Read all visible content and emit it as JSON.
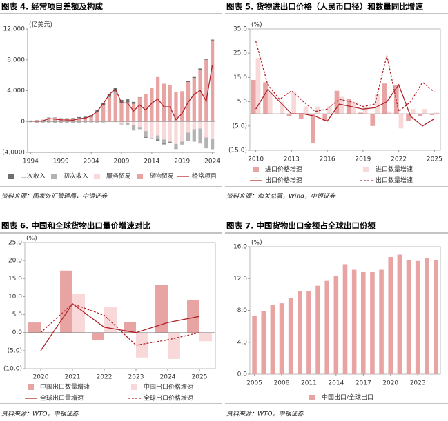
{
  "chart_data": [
    {
      "type": "combo",
      "title": "图表 4. 经常项目差额及构成",
      "source": "资料来源：国家外汇管理局，中银证券",
      "unit": "(亿美元)",
      "stacked": true,
      "categories": [
        "1994",
        null,
        null,
        null,
        null,
        "1999",
        null,
        null,
        null,
        null,
        "2004",
        null,
        null,
        null,
        null,
        "2009",
        null,
        null,
        null,
        null,
        "2014",
        null,
        null,
        null,
        null,
        "2019",
        null,
        null,
        null,
        null,
        "2024"
      ],
      "ylim": [
        -4000,
        12000
      ],
      "yticks": [
        {
          "value": -4000,
          "label": "(4,000)"
        },
        0,
        {
          "value": 4000,
          "label": "4,000"
        },
        {
          "value": 8000,
          "label": "8,000"
        },
        {
          "value": 12000,
          "label": "12,000"
        }
      ],
      "series": [
        {
          "name": "二次收入",
          "kind": "bar",
          "color": "#6e6e6e",
          "values": [
            10,
            10,
            20,
            50,
            40,
            50,
            60,
            90,
            130,
            170,
            230,
            250,
            290,
            390,
            430,
            370,
            410,
            250,
            30,
            -90,
            10,
            -130,
            -90,
            -70,
            -40,
            0,
            160,
            140,
            180,
            90,
            110
          ]
        },
        {
          "name": "初次收入",
          "kind": "bar",
          "color": "#b3b3b3",
          "values": [
            -100,
            -120,
            -120,
            -110,
            -170,
            -140,
            -150,
            -190,
            -150,
            -100,
            -50,
            -160,
            -50,
            80,
            290,
            -90,
            -260,
            -700,
            -200,
            -780,
            -130,
            -520,
            -550,
            -100,
            -610,
            -390,
            -1050,
            -1620,
            -1940,
            -1400,
            -1300
          ]
        },
        {
          "name": "服务贸易",
          "kind": "bar",
          "color": "#f8d8d8",
          "values": [
            0,
            -60,
            -20,
            -30,
            -30,
            -50,
            -60,
            -60,
            -70,
            -90,
            -100,
            -90,
            -90,
            -80,
            -120,
            -300,
            -230,
            -470,
            -800,
            -1240,
            -2140,
            -1820,
            -2330,
            -2590,
            -2920,
            -2610,
            -1450,
            -1000,
            -920,
            -2080,
            -2300
          ]
        },
        {
          "name": "货物贸易",
          "kind": "bar",
          "color": "#e8a3a3",
          "values": [
            70,
            180,
            200,
            460,
            470,
            360,
            350,
            340,
            440,
            450,
            590,
            1240,
            2090,
            3120,
            3600,
            2430,
            2460,
            2290,
            3120,
            3590,
            4350,
            5760,
            4890,
            4760,
            3800,
            3930,
            5110,
            5630,
            6690,
            8000,
            10500
          ]
        },
        {
          "name": "经常项目",
          "kind": "line",
          "color": "#b0232a",
          "values": [
            80,
            20,
            70,
            370,
            320,
            210,
            200,
            170,
            350,
            430,
            690,
            1320,
            2320,
            3530,
            4210,
            2430,
            2380,
            1360,
            2150,
            1480,
            2360,
            2930,
            1910,
            1890,
            240,
            1030,
            2490,
            3530,
            4020,
            2640,
            7300
          ]
        }
      ]
    },
    {
      "type": "combo",
      "title": "图表 5. 货物进出口价格（人民币口径）和数量同比增速",
      "source": "资料来源：海关总署，Wind，中银证券",
      "unit": "(%)",
      "categories": [
        "2010",
        null,
        null,
        "2013",
        null,
        null,
        "2016",
        null,
        null,
        "2019",
        null,
        null,
        "2022",
        null,
        null,
        "2025"
      ],
      "ylim": [
        -15,
        35
      ],
      "yticks": [
        {
          "value": -15,
          "label": "(15.0)"
        },
        {
          "value": -5,
          "label": "(5.0)"
        },
        {
          "value": 5,
          "label": "5.0"
        },
        {
          "value": 15,
          "label": "15.0"
        },
        {
          "value": 25,
          "label": "25.0"
        },
        {
          "value": 35,
          "label": "35.0"
        }
      ],
      "series": [
        {
          "name": "进口价格增速",
          "kind": "bar",
          "color": "#e8a3a3",
          "values": [
            14,
            13,
            0,
            -1,
            -2,
            -12,
            -3,
            9.5,
            6,
            0.5,
            -5,
            12.5,
            12,
            -3,
            -1,
            -0.5
          ]
        },
        {
          "name": "进口数量增速",
          "kind": "bar",
          "color": "#f8d8d8",
          "values": [
            23,
            9,
            5,
            9,
            3,
            3,
            3,
            7,
            5,
            3,
            8,
            1,
            -6,
            2,
            2,
            0.5
          ]
        },
        {
          "name": "出口价格增速",
          "kind": "line",
          "color": "#b0232a",
          "values": [
            2,
            10,
            5,
            0,
            0,
            -1,
            -3,
            4,
            3,
            2,
            2.5,
            5,
            12,
            -1,
            -5,
            -2
          ]
        },
        {
          "name": "出口数量增速",
          "kind": "line",
          "dash": true,
          "color": "#b0232a",
          "values": [
            30,
            12,
            6,
            9.5,
            5,
            1,
            2,
            6,
            5,
            3,
            4,
            24,
            1,
            5,
            13,
            9
          ]
        }
      ]
    },
    {
      "type": "combo",
      "title": "图表 6. 中国和全球货物出口量价增速对比",
      "source": "资料来源：WTO，中银证券",
      "unit": "(%)",
      "categories": [
        "2020",
        "2021",
        "2022",
        "2023",
        "2024",
        "2025"
      ],
      "ylim": [
        -10,
        25
      ],
      "yticks": [
        {
          "value": -10,
          "label": "(10.0)"
        },
        {
          "value": -5,
          "label": "(5.0)"
        },
        {
          "value": 0,
          "label": "0.0"
        },
        {
          "value": 5,
          "label": "5.0"
        },
        {
          "value": 10,
          "label": "10.0"
        },
        {
          "value": 15,
          "label": "15.0"
        },
        {
          "value": 20,
          "label": "20.0"
        },
        {
          "value": 25,
          "label": "25.0"
        }
      ],
      "series": [
        {
          "name": "中国出口数量增速",
          "kind": "bar",
          "color": "#e8a3a3",
          "values": [
            2.8,
            17.2,
            -2.1,
            3.0,
            13.2,
            9.1
          ]
        },
        {
          "name": "中国出口价格增速",
          "kind": "bar",
          "color": "#f8d8d8",
          "values": [
            0.2,
            10.8,
            7.0,
            -6.9,
            -7.3,
            -2.4
          ]
        },
        {
          "name": "全球出口量增速",
          "kind": "line",
          "color": "#b0232a",
          "values": [
            -5.0,
            8.0,
            1.5,
            0.0,
            2.8,
            4.5
          ]
        },
        {
          "name": "全球出口价格增速",
          "kind": "line",
          "dash": true,
          "color": "#b0232a",
          "values": [
            0.0,
            8.0,
            4.8,
            -3.5,
            -2.0,
            0.0
          ]
        }
      ]
    },
    {
      "type": "bar",
      "title": "图表 7. 中国货物出口金额占全球出口份额",
      "source": "资料来源：WTO，中银证券",
      "unit": "(%)",
      "categories": [
        "2005",
        null,
        null,
        "2008",
        null,
        null,
        "2011",
        null,
        null,
        "2014",
        null,
        null,
        "2017",
        null,
        null,
        "2020",
        null,
        null,
        "2023",
        null,
        null
      ],
      "ylim": [
        0,
        16
      ],
      "yticks": [
        {
          "value": 0,
          "label": "0.0"
        },
        {
          "value": 4,
          "label": "4.0"
        },
        {
          "value": 8,
          "label": "8.0"
        },
        {
          "value": 12,
          "label": "12.0"
        },
        {
          "value": 16,
          "label": "16.0"
        }
      ],
      "series": [
        {
          "name": "中国出口/全球出口",
          "kind": "bar",
          "color": "#e8a3a3",
          "values": [
            7.3,
            7.9,
            8.7,
            8.9,
            9.6,
            10.4,
            10.4,
            11.1,
            11.7,
            12.3,
            13.8,
            13.1,
            12.8,
            12.8,
            13.1,
            14.7,
            15.0,
            14.3,
            14.2,
            14.6,
            14.3
          ]
        }
      ]
    }
  ]
}
